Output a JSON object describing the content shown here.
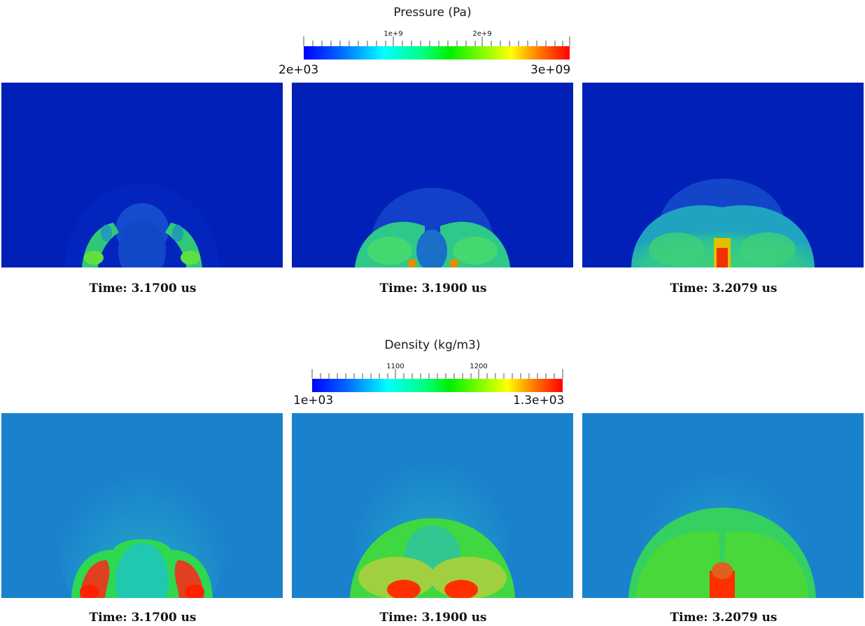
{
  "pressure": {
    "title": "Pressure (Pa)",
    "min_label": "2e+03",
    "max_label": "3e+09",
    "tick_labels": [
      "1e+9",
      "2e+9"
    ],
    "captions": [
      "Time: 3.1700 us",
      "Time: 3.1900 us",
      "Time: 3.2079 us"
    ]
  },
  "density": {
    "title": "Density (kg/m3)",
    "min_label": "1e+03",
    "max_label": "1.3e+03",
    "tick_labels": [
      "1100",
      "1200"
    ],
    "captions": [
      "Time: 3.1700 us",
      "Time: 3.1900 us",
      "Time: 3.2079 us"
    ]
  },
  "colors": {
    "pressure_background": "#0020b8",
    "density_background": "#1a82cc",
    "colormap": [
      "#0000ff",
      "#0080ff",
      "#00ffff",
      "#00ff80",
      "#00ff00",
      "#80ff00",
      "#ffff00",
      "#ff8000",
      "#ff0000"
    ]
  }
}
